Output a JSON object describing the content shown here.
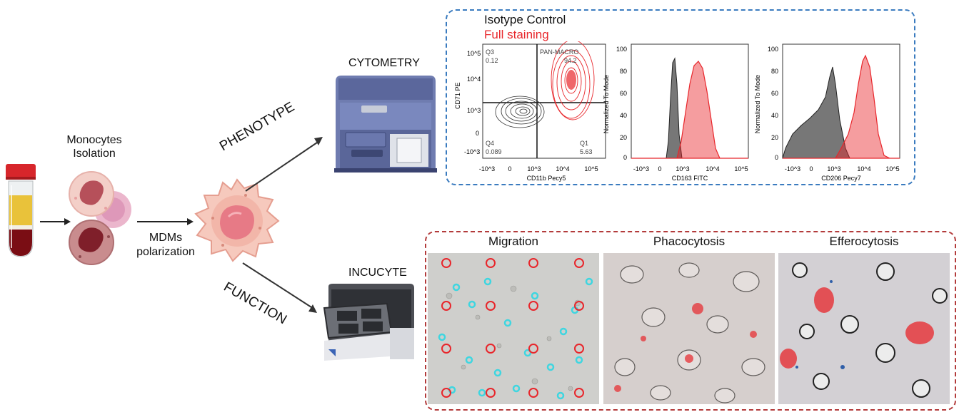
{
  "workflow": {
    "monocytes_line1": "Monocytes",
    "monocytes_line2": "Isolation",
    "mdm_line1": "MDMs",
    "mdm_line2": "polarization",
    "phenotype": "PHENOTYPE",
    "function": "FUNCTION",
    "cytometry": "CYTOMETRY",
    "incucyte": "INCUCYTE"
  },
  "legend": {
    "isotype": "Isotype Control",
    "full": "Full staining"
  },
  "colors": {
    "isotype": "#555555",
    "full": "#e8262b",
    "blue_box": "#3a7bbf",
    "red_box": "#b33b3b",
    "overlay_cyan": "#3fd6e0"
  },
  "contour_plot": {
    "y_axis": "CD71 PE",
    "x_axis": "CD11b Pecy5",
    "y_ticks": [
      "10^5",
      "10^4",
      "10^3",
      "0",
      "-10^3"
    ],
    "x_ticks": [
      "-10^3",
      "0",
      "10^3",
      "10^4",
      "10^5"
    ],
    "q3_label": "Q3",
    "q3_value": "0.12",
    "q4_label": "Q4",
    "q4_value": "0.089",
    "q1_label": "Q1",
    "q1_value": "5.63",
    "gate_label": "PAN-MACRO",
    "gate_value": "94.2"
  },
  "histogram1": {
    "y_axis": "Normalized To Mode",
    "x_axis": "CD163 FITC",
    "y_ticks": [
      "100",
      "80",
      "60",
      "40",
      "20",
      "0"
    ],
    "x_ticks": [
      "-10^3",
      "0",
      "10^3",
      "10^4",
      "10^5"
    ]
  },
  "histogram2": {
    "y_axis": "Normalized To Mode",
    "x_axis": "CD206 Pecy7",
    "y_ticks": [
      "100",
      "80",
      "60",
      "40",
      "20",
      "0"
    ],
    "x_ticks": [
      "-10^3",
      "0",
      "10^3",
      "10^4",
      "10^5"
    ]
  },
  "assays": {
    "migration": "Migration",
    "phagocytosis": "Phacocytosis",
    "efferocytosis": "Efferocytosis"
  }
}
